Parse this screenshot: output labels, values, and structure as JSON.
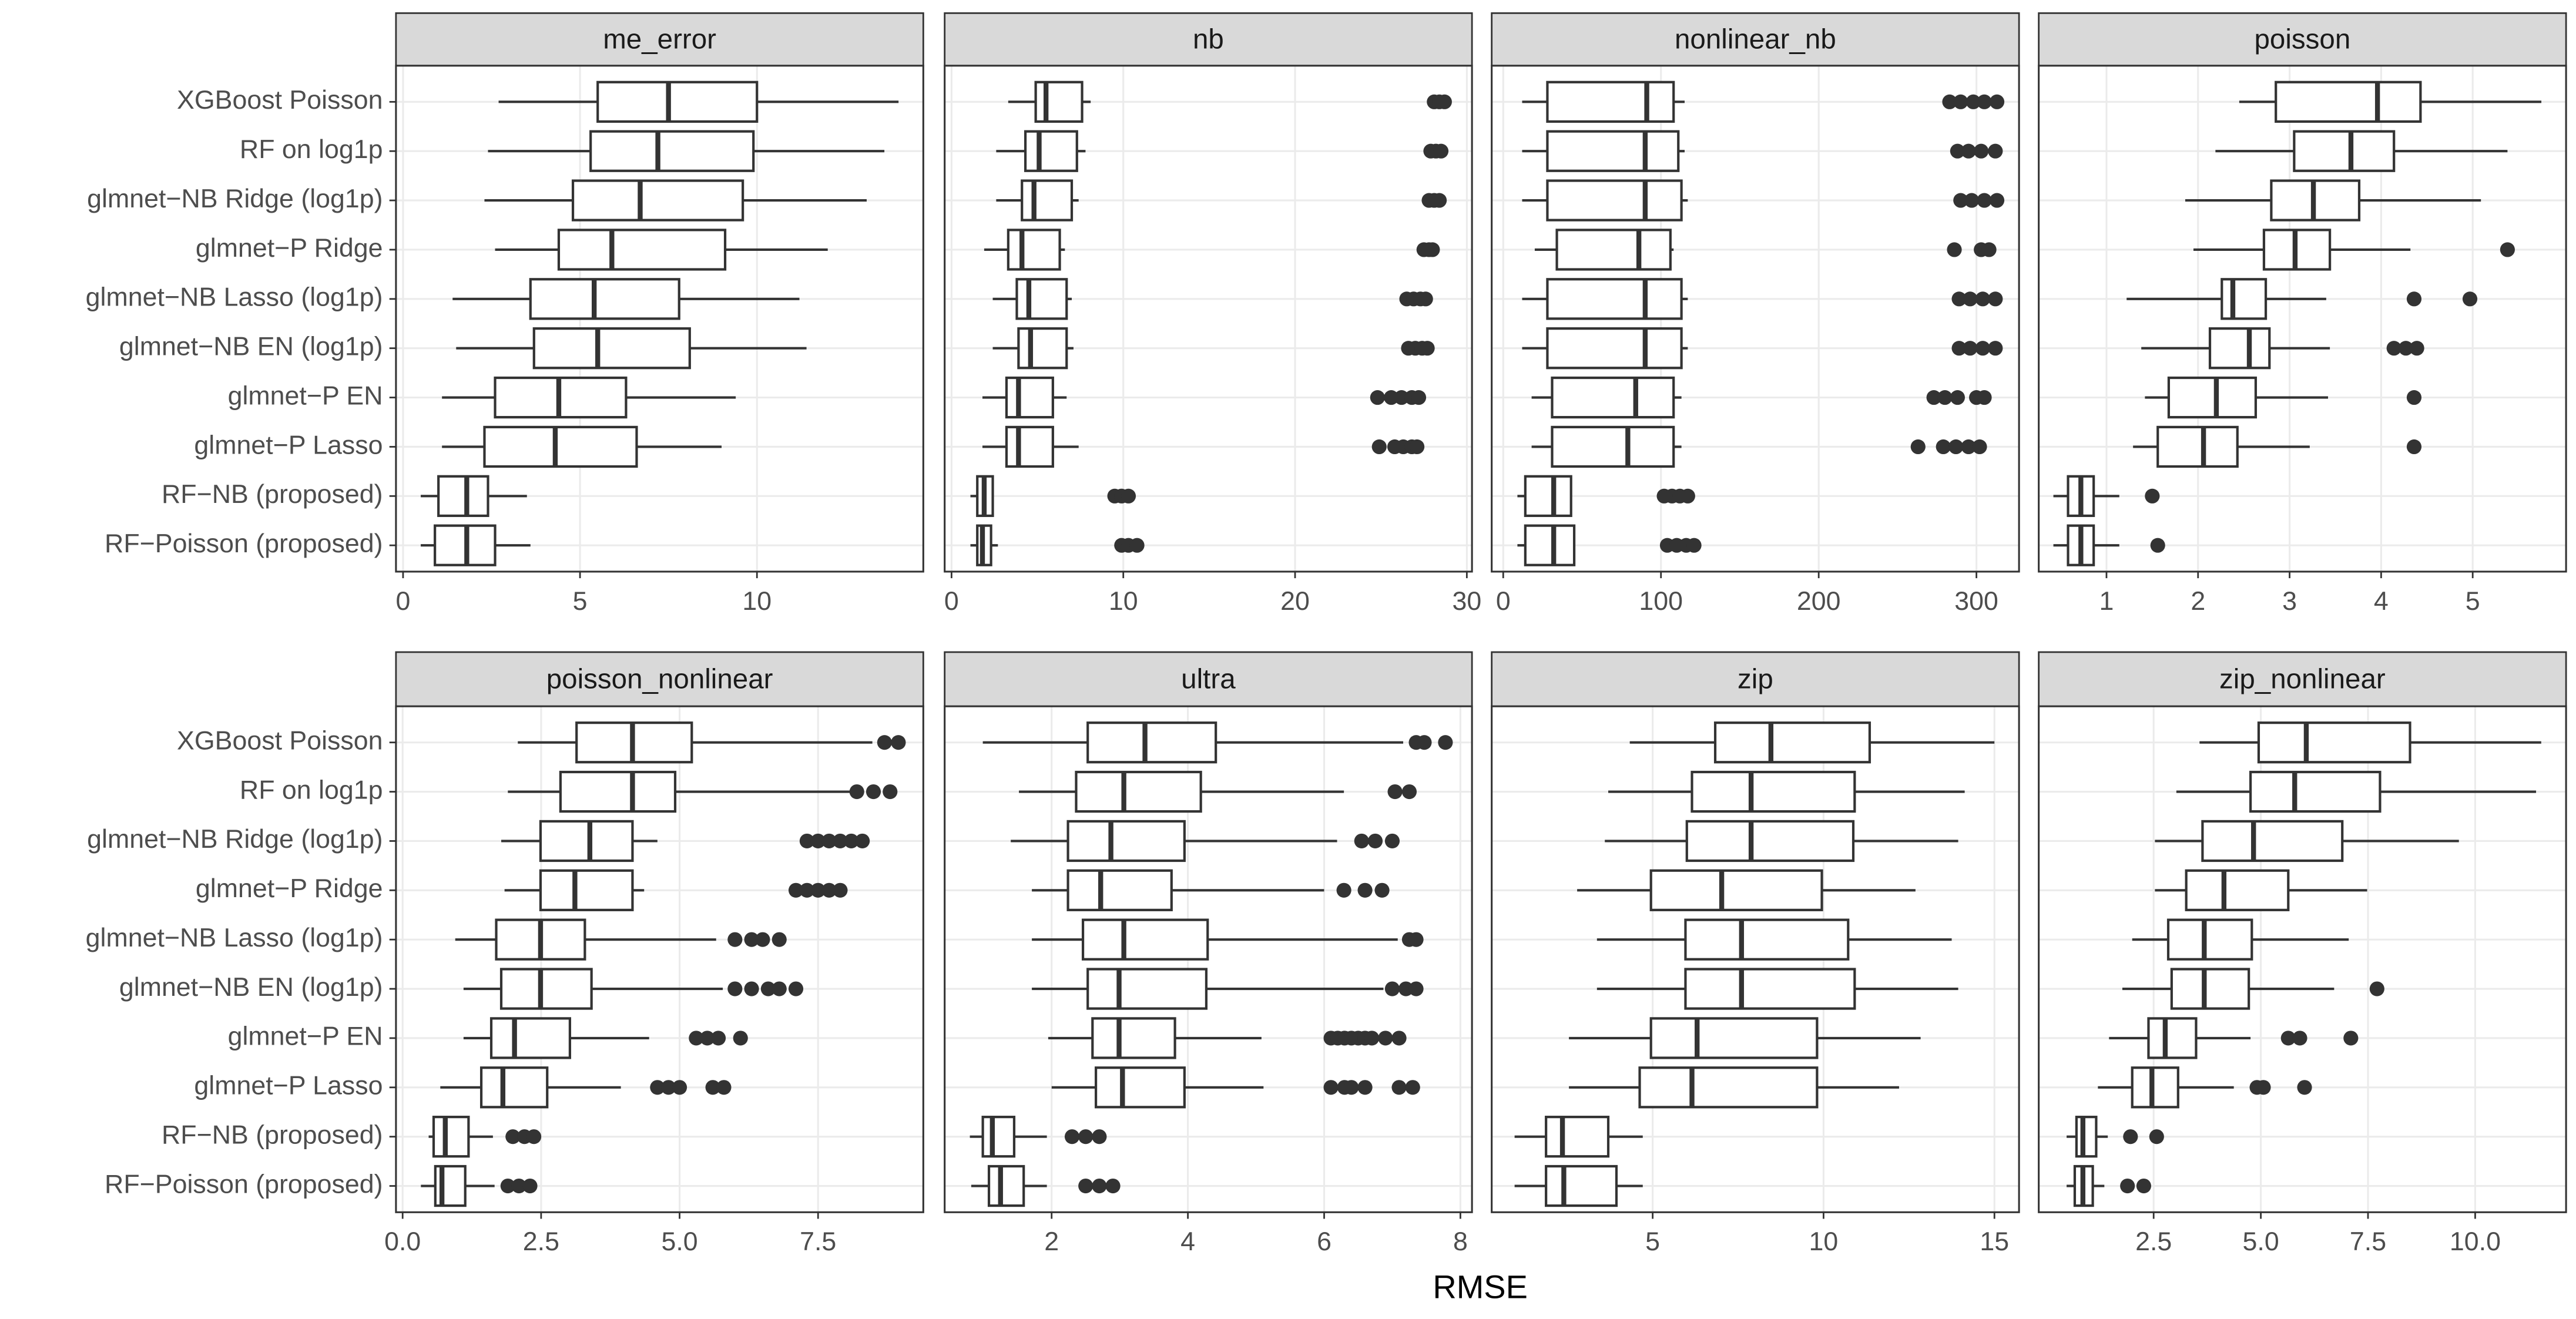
{
  "chart_data": [
    {
      "type": "box",
      "title": "me_error",
      "categories": [
        "XGBoost Poisson",
        "RF on log1p",
        "glmnet−NB Ridge (log1p)",
        "glmnet−P Ridge",
        "glmnet−NB Lasso (log1p)",
        "glmnet−NB EN (log1p)",
        "glmnet−P EN",
        "glmnet−P Lasso",
        "RF−NB (proposed)",
        "RF−Poisson (proposed)"
      ],
      "low": [
        2.7,
        2.4,
        2.3,
        2.6,
        1.4,
        1.5,
        1.1,
        1.1,
        0.5,
        0.5
      ],
      "q1": [
        5.5,
        5.3,
        4.8,
        4.4,
        3.6,
        3.7,
        2.6,
        2.3,
        1.0,
        0.9
      ],
      "median": [
        7.5,
        7.2,
        6.7,
        5.9,
        5.4,
        5.5,
        4.4,
        4.3,
        1.8,
        1.8
      ],
      "q3": [
        10.0,
        9.9,
        9.6,
        9.1,
        7.8,
        8.1,
        6.3,
        6.6,
        2.4,
        2.6
      ],
      "high": [
        14.0,
        13.6,
        13.1,
        12.0,
        11.2,
        11.4,
        9.4,
        9.0,
        3.5,
        3.6
      ],
      "outliers": [
        [],
        [],
        [],
        [],
        [],
        [],
        [],
        [],
        [],
        []
      ],
      "xlim": [
        -0.2,
        14.7
      ],
      "xticks": [
        0,
        5,
        10
      ]
    },
    {
      "type": "box",
      "title": "nb",
      "categories": [
        "XGBoost Poisson",
        "RF on log1p",
        "glmnet−NB Ridge (log1p)",
        "glmnet−P Ridge",
        "glmnet−NB Lasso (log1p)",
        "glmnet−NB EN (log1p)",
        "glmnet−P EN",
        "glmnet−P Lasso",
        "RF−NB (proposed)",
        "RF−Poisson (proposed)"
      ],
      "low": [
        3.3,
        2.6,
        2.6,
        1.9,
        2.4,
        2.4,
        1.8,
        1.8,
        1.1,
        1.1
      ],
      "q1": [
        4.9,
        4.3,
        4.1,
        3.3,
        3.8,
        3.9,
        3.2,
        3.2,
        1.5,
        1.5
      ],
      "median": [
        5.5,
        5.1,
        4.8,
        4.1,
        4.5,
        4.6,
        3.9,
        3.9,
        1.9,
        1.8
      ],
      "q3": [
        7.6,
        7.3,
        7.0,
        6.3,
        6.7,
        6.7,
        5.9,
        5.9,
        2.4,
        2.3
      ],
      "high": [
        8.1,
        7.8,
        7.4,
        6.6,
        7.0,
        7.1,
        6.7,
        7.4,
        2.4,
        2.7
      ],
      "outliers": [
        [
          28.1,
          28.4,
          28.7
        ],
        [
          27.9,
          28.2,
          28.5
        ],
        [
          27.8,
          28.1,
          28.4
        ],
        [
          27.5,
          27.8,
          28.0
        ],
        [
          26.5,
          26.9,
          27.3,
          27.6
        ],
        [
          26.6,
          27.0,
          27.4,
          27.7
        ],
        [
          24.8,
          25.6,
          26.2,
          26.8,
          27.2
        ],
        [
          24.9,
          25.8,
          26.3,
          26.8,
          27.1
        ],
        [
          9.5,
          9.9,
          10.3
        ],
        [
          9.9,
          10.3,
          10.8
        ]
      ],
      "xlim": [
        -0.4,
        30.3
      ],
      "xticks": [
        0,
        10,
        20,
        30
      ]
    },
    {
      "type": "box",
      "title": "nonlinear_nb",
      "categories": [
        "XGBoost Poisson",
        "RF on log1p",
        "glmnet−NB Ridge (log1p)",
        "glmnet−P Ridge",
        "glmnet−NB Lasso (log1p)",
        "glmnet−NB EN (log1p)",
        "glmnet−P EN",
        "glmnet−P Lasso",
        "RF−NB (proposed)",
        "RF−Poisson (proposed)"
      ],
      "low": [
        12,
        12,
        12,
        20,
        12,
        12,
        18,
        18,
        9,
        9
      ],
      "q1": [
        28,
        28,
        28,
        34,
        28,
        28,
        31,
        31,
        14,
        14
      ],
      "median": [
        91,
        90,
        90,
        86,
        90,
        90,
        84,
        79,
        32,
        32
      ],
      "q3": [
        108,
        111,
        113,
        106,
        113,
        113,
        108,
        108,
        43,
        45
      ],
      "high": [
        115,
        115,
        117,
        108,
        117,
        117,
        113,
        113,
        43,
        45
      ],
      "outliers": [
        [
          283,
          290,
          298,
          305,
          313
        ],
        [
          288,
          295,
          303,
          312
        ],
        [
          290,
          297,
          305,
          313
        ],
        [
          286,
          303,
          308
        ],
        [
          289,
          296,
          304,
          312
        ],
        [
          289,
          296,
          304,
          312
        ],
        [
          273,
          280,
          288,
          300,
          305
        ],
        [
          263,
          279,
          287,
          295,
          302
        ],
        [
          102,
          107,
          112,
          117
        ],
        [
          104,
          110,
          116,
          121
        ]
      ],
      "xlim": [
        -7.3,
        327
      ],
      "xticks": [
        0,
        100,
        200,
        300
      ]
    },
    {
      "type": "box",
      "title": "poisson",
      "categories": [
        "XGBoost Poisson",
        "RF on log1p",
        "glmnet−NB Ridge (log1p)",
        "glmnet−P Ridge",
        "glmnet−NB Lasso (log1p)",
        "glmnet−NB EN (log1p)",
        "glmnet−P EN",
        "glmnet−P Lasso",
        "RF−NB (proposed)",
        "RF−Poisson (proposed)"
      ],
      "low": [
        2.45,
        2.19,
        1.86,
        1.95,
        1.22,
        1.38,
        1.42,
        1.29,
        0.42,
        0.42
      ],
      "q1": [
        2.85,
        3.05,
        2.8,
        2.72,
        2.26,
        2.13,
        1.68,
        1.56,
        0.58,
        0.58
      ],
      "median": [
        3.96,
        3.67,
        3.26,
        3.06,
        2.38,
        2.56,
        2.2,
        2.06,
        0.72,
        0.72
      ],
      "q3": [
        4.43,
        4.14,
        3.76,
        3.44,
        2.74,
        2.78,
        2.63,
        2.43,
        0.86,
        0.86
      ],
      "high": [
        5.75,
        5.38,
        5.09,
        4.32,
        3.4,
        3.44,
        3.42,
        3.22,
        1.14,
        1.14
      ],
      "outliers": [
        [],
        [],
        [],
        [
          5.38
        ],
        [
          4.36,
          4.97
        ],
        [
          4.14,
          4.27,
          4.39
        ],
        [
          4.36
        ],
        [
          4.36
        ],
        [
          1.5
        ],
        [
          1.56
        ]
      ],
      "xlim": [
        0.26,
        6.02
      ],
      "xticks": [
        1,
        2,
        3,
        4,
        5
      ]
    },
    {
      "type": "box",
      "title": "poisson_nonlinear",
      "categories": [
        "XGBoost Poisson",
        "RF on log1p",
        "glmnet−NB Ridge (log1p)",
        "glmnet−P Ridge",
        "glmnet−NB Lasso (log1p)",
        "glmnet−NB EN (log1p)",
        "glmnet−P EN",
        "glmnet−P Lasso",
        "RF−NB (proposed)",
        "RF−Poisson (proposed)"
      ],
      "low": [
        2.08,
        1.9,
        1.78,
        1.84,
        0.95,
        1.1,
        1.1,
        0.68,
        0.47,
        0.33
      ],
      "q1": [
        3.14,
        2.85,
        2.49,
        2.49,
        1.69,
        1.78,
        1.6,
        1.42,
        0.56,
        0.59
      ],
      "median": [
        4.15,
        4.15,
        3.38,
        3.11,
        2.49,
        2.49,
        2.02,
        1.81,
        0.77,
        0.71
      ],
      "q3": [
        5.22,
        4.92,
        4.15,
        4.15,
        3.29,
        3.41,
        3.02,
        2.61,
        1.19,
        1.13
      ],
      "high": [
        8.48,
        8.1,
        4.6,
        4.36,
        5.66,
        5.78,
        4.45,
        3.94,
        1.63,
        1.66
      ],
      "outliers": [
        [
          8.7,
          8.95
        ],
        [
          8.2,
          8.5,
          8.8
        ],
        [
          7.3,
          7.5,
          7.7,
          7.9,
          8.1,
          8.3
        ],
        [
          7.1,
          7.3,
          7.5,
          7.7,
          7.9
        ],
        [
          6.0,
          6.3,
          6.5,
          6.8
        ],
        [
          6.0,
          6.3,
          6.6,
          6.8,
          7.1
        ],
        [
          5.3,
          5.5,
          5.7,
          6.1
        ],
        [
          4.6,
          4.8,
          5.0,
          5.6,
          5.8
        ],
        [
          1.99,
          2.2,
          2.37
        ],
        [
          1.9,
          2.1,
          2.3
        ]
      ],
      "xlim": [
        -0.12,
        9.4
      ],
      "xticks": [
        {
          "value": 0,
          "label": "0.0"
        },
        2.5,
        {
          "value": 5,
          "label": "5.0"
        },
        7.5
      ]
    },
    {
      "type": "box",
      "title": "ultra",
      "categories": [
        "XGBoost Poisson",
        "RF on log1p",
        "glmnet−NB Ridge (log1p)",
        "glmnet−P Ridge",
        "glmnet−NB Lasso (log1p)",
        "glmnet−NB EN (log1p)",
        "glmnet−P EN",
        "glmnet−P Lasso",
        "RF−NB (proposed)",
        "RF−Poisson (proposed)"
      ],
      "low": [
        0.99,
        1.52,
        1.4,
        1.71,
        1.71,
        1.71,
        1.95,
        2.0,
        0.8,
        0.82
      ],
      "q1": [
        2.53,
        2.36,
        2.24,
        2.24,
        2.46,
        2.53,
        2.6,
        2.65,
        0.99,
        1.08
      ],
      "median": [
        3.37,
        3.06,
        2.87,
        2.72,
        3.06,
        2.99,
        2.99,
        3.04,
        1.13,
        1.25
      ],
      "q3": [
        4.41,
        4.19,
        3.95,
        3.76,
        4.29,
        4.27,
        3.81,
        3.95,
        1.45,
        1.59
      ],
      "high": [
        7.16,
        6.29,
        6.19,
        6.0,
        7.08,
        6.87,
        5.08,
        5.11,
        1.93,
        1.93
      ],
      "outliers": [
        [
          7.35,
          7.47,
          7.78
        ],
        [
          7.04,
          7.25
        ],
        [
          6.55,
          6.75,
          7.0
        ],
        [
          6.29,
          6.6,
          6.85
        ],
        [
          7.25,
          7.35
        ],
        [
          7.0,
          7.2,
          7.35
        ],
        [
          6.1,
          6.2,
          6.3,
          6.4,
          6.5,
          6.6,
          6.7,
          6.9,
          7.1
        ],
        [
          6.1,
          6.3,
          6.4,
          6.6,
          7.1,
          7.3
        ],
        [
          2.3,
          2.5,
          2.7
        ],
        [
          2.5,
          2.7,
          2.9
        ]
      ],
      "xlim": [
        0.43,
        8.17
      ],
      "xticks": [
        2,
        4,
        6,
        8
      ]
    },
    {
      "type": "box",
      "title": "zip",
      "categories": [
        "XGBoost Poisson",
        "RF on log1p",
        "glmnet−NB Ridge (log1p)",
        "glmnet−P Ridge",
        "glmnet−NB Lasso (log1p)",
        "glmnet−NB EN (log1p)",
        "glmnet−P EN",
        "glmnet−P Lasso",
        "RF−NB (proposed)",
        "RF−Poisson (proposed)"
      ],
      "low": [
        4.33,
        3.7,
        3.6,
        2.79,
        3.37,
        3.37,
        2.55,
        2.55,
        0.96,
        0.96
      ],
      "q1": [
        6.83,
        6.15,
        6.0,
        4.95,
        5.96,
        5.96,
        4.95,
        4.62,
        1.88,
        1.88
      ],
      "median": [
        8.46,
        7.88,
        7.88,
        7.02,
        7.6,
        7.6,
        6.3,
        6.15,
        2.36,
        2.4
      ],
      "q3": [
        11.35,
        10.91,
        10.87,
        9.95,
        10.72,
        10.91,
        9.81,
        9.81,
        3.7,
        3.94
      ],
      "high": [
        15.0,
        14.13,
        13.94,
        12.69,
        13.75,
        13.94,
        12.84,
        12.21,
        4.71,
        4.71
      ],
      "outliers": [
        [],
        [],
        [],
        [],
        [],
        [],
        [],
        [],
        [],
        []
      ],
      "xlim": [
        0.29,
        15.72
      ],
      "xticks": [
        5,
        10,
        15
      ]
    },
    {
      "type": "box",
      "title": "zip_nonlinear",
      "categories": [
        "XGBoost Poisson",
        "RF on log1p",
        "glmnet−NB Ridge (log1p)",
        "glmnet−P Ridge",
        "glmnet−NB Lasso (log1p)",
        "glmnet−NB EN (log1p)",
        "glmnet−P EN",
        "glmnet−P Lasso",
        "RF−NB (proposed)",
        "RF−Poisson (proposed)"
      ],
      "low": [
        3.57,
        3.03,
        2.53,
        2.53,
        2.0,
        1.77,
        1.46,
        1.2,
        0.47,
        0.47
      ],
      "q1": [
        4.95,
        4.76,
        3.64,
        3.26,
        2.84,
        2.92,
        2.38,
        2.0,
        0.7,
        0.66
      ],
      "median": [
        6.06,
        5.79,
        4.83,
        4.14,
        3.68,
        3.68,
        2.77,
        2.46,
        0.85,
        0.85
      ],
      "q3": [
        8.48,
        7.78,
        6.9,
        5.64,
        4.79,
        4.72,
        3.49,
        3.07,
        1.16,
        1.08
      ],
      "high": [
        11.54,
        11.42,
        9.62,
        7.48,
        7.05,
        6.71,
        4.76,
        4.37,
        1.43,
        1.35
      ],
      "outliers": [
        [],
        [],
        [],
        [],
        [],
        [
          7.71
        ],
        [
          5.64,
          5.91,
          7.1
        ],
        [
          4.91,
          5.06,
          6.02
        ],
        [
          1.96,
          2.57
        ],
        [
          1.89,
          2.27
        ]
      ],
      "xlim": [
        -0.18,
        12.12
      ],
      "xticks": [
        2.5,
        {
          "value": 5,
          "label": "5.0"
        },
        7.5,
        {
          "value": 10,
          "label": "10.0"
        }
      ]
    }
  ],
  "x_label": "RMSE"
}
